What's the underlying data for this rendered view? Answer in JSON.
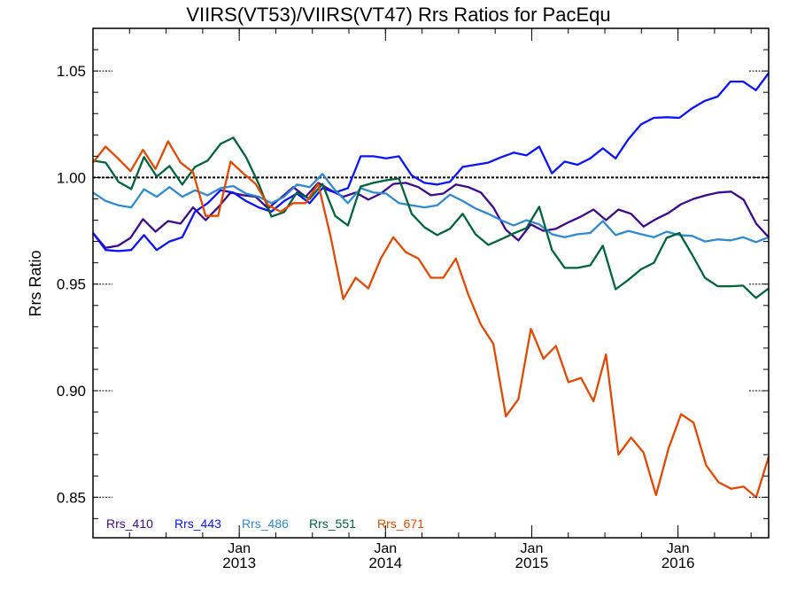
{
  "chart_data": {
    "type": "line",
    "title": "VIIRS(VT53)/VIIRS(VT47)  Rrs Ratios for PacEqu",
    "xlabel": "",
    "ylabel": "Rrs Ratio",
    "xlim": [
      2012.0,
      2016.62
    ],
    "ylim": [
      0.831,
      1.07
    ],
    "x_start": 2012.0,
    "x_end": 2016.62,
    "x_ticks": [
      {
        "value": 2013.0,
        "label": "Jan",
        "year": "2013"
      },
      {
        "value": 2014.0,
        "label": "Jan",
        "year": "2014"
      },
      {
        "value": 2015.0,
        "label": "Jan",
        "year": "2015"
      },
      {
        "value": 2016.0,
        "label": "Jan",
        "year": "2016"
      }
    ],
    "y_ticks": [
      {
        "value": 0.85,
        "label": "0.85"
      },
      {
        "value": 0.9,
        "label": "0.90"
      },
      {
        "value": 0.95,
        "label": "0.95"
      },
      {
        "value": 1.0,
        "label": "1.00"
      },
      {
        "value": 1.05,
        "label": "1.05"
      }
    ],
    "reference_line": 1.0,
    "legend_position": "bottom-left",
    "series": [
      {
        "name": "Rrs_410",
        "color": "#3c0a8c",
        "values": [
          0.974,
          0.967,
          0.968,
          0.9717,
          0.9805,
          0.9746,
          0.9796,
          0.9784,
          0.986,
          0.98,
          0.986,
          0.993,
          0.9917,
          0.991,
          0.9855,
          0.9904,
          0.9955,
          0.991,
          0.9975,
          0.994,
          0.991,
          0.993,
          0.9896,
          0.9925,
          0.997,
          0.9975,
          0.9955,
          0.9917,
          0.9925,
          0.9967,
          0.9955,
          0.993,
          0.986,
          0.9755,
          0.9705,
          0.978,
          0.975,
          0.976,
          0.979,
          0.9817,
          0.985,
          0.98,
          0.985,
          0.983,
          0.977,
          0.9805,
          0.9834,
          0.9875,
          0.99,
          0.9917,
          0.993,
          0.9934,
          0.9896,
          0.9784,
          0.972
        ]
      },
      {
        "name": "Rrs_443",
        "color": "#0a14ff",
        "values": [
          0.974,
          0.966,
          0.9655,
          0.966,
          0.973,
          0.966,
          0.97,
          0.972,
          0.984,
          0.988,
          0.994,
          0.993,
          0.989,
          0.986,
          0.984,
          0.989,
          0.9925,
          0.988,
          0.995,
          0.993,
          0.995,
          1.01,
          1.01,
          1.009,
          1.01,
          1.001,
          0.9975,
          0.9967,
          0.998,
          1.005,
          1.006,
          1.007,
          1.0095,
          1.0117,
          1.0104,
          1.0145,
          1.002,
          1.0075,
          1.006,
          1.009,
          1.0137,
          1.009,
          1.018,
          1.025,
          1.028,
          1.0283,
          1.028,
          1.0325,
          1.036,
          1.038,
          1.045,
          1.045,
          1.041,
          1.049
        ]
      },
      {
        "name": "Rrs_486",
        "color": "#2f8ad0",
        "values": [
          0.993,
          0.989,
          0.987,
          0.986,
          0.9945,
          0.991,
          0.9955,
          0.991,
          0.994,
          0.9917,
          0.995,
          0.996,
          0.9925,
          0.991,
          0.988,
          0.991,
          0.9967,
          0.9955,
          1.0017,
          0.994,
          0.988,
          0.995,
          0.993,
          0.9925,
          0.988,
          0.987,
          0.986,
          0.987,
          0.992,
          0.989,
          0.9855,
          0.983,
          0.98,
          0.9775,
          0.98,
          0.978,
          0.9734,
          0.972,
          0.9734,
          0.974,
          0.9796,
          0.973,
          0.975,
          0.9734,
          0.972,
          0.9746,
          0.973,
          0.9726,
          0.97,
          0.971,
          0.9705,
          0.972,
          0.9697,
          0.972
        ]
      },
      {
        "name": "Rrs_551",
        "color": "#00643a",
        "values": [
          1.008,
          1.007,
          0.998,
          0.9946,
          1.0096,
          1.0004,
          1.0054,
          0.9967,
          1.005,
          1.008,
          1.0158,
          1.0187,
          1.0096,
          0.997,
          0.9817,
          0.9838,
          0.993,
          0.99,
          0.997,
          0.982,
          0.9775,
          0.9958,
          0.9975,
          0.9987,
          0.9996,
          0.983,
          0.9767,
          0.973,
          0.976,
          0.983,
          0.9734,
          0.9684,
          0.971,
          0.9738,
          0.9763,
          0.9863,
          0.966,
          0.9576,
          0.9576,
          0.9588,
          0.968,
          0.9476,
          0.952,
          0.957,
          0.96,
          0.9717,
          0.974,
          0.9638,
          0.953,
          0.949,
          0.949,
          0.9493,
          0.9435,
          0.948
        ]
      },
      {
        "name": "Rrs_671",
        "color": "#e04a00",
        "values": [
          1.007,
          1.0145,
          1.009,
          1.003,
          1.013,
          1.004,
          1.017,
          1.007,
          1.0025,
          0.982,
          0.982,
          1.0075,
          1.002,
          0.997,
          0.987,
          0.984,
          0.988,
          0.988,
          0.997,
          0.972,
          0.943,
          0.953,
          0.948,
          0.962,
          0.972,
          0.965,
          0.962,
          0.953,
          0.953,
          0.962,
          0.945,
          0.931,
          0.922,
          0.888,
          0.896,
          0.929,
          0.915,
          0.921,
          0.904,
          0.906,
          0.895,
          0.917,
          0.87,
          0.878,
          0.871,
          0.851,
          0.873,
          0.889,
          0.885,
          0.865,
          0.857,
          0.854,
          0.855,
          0.85,
          0.869
        ]
      }
    ]
  }
}
